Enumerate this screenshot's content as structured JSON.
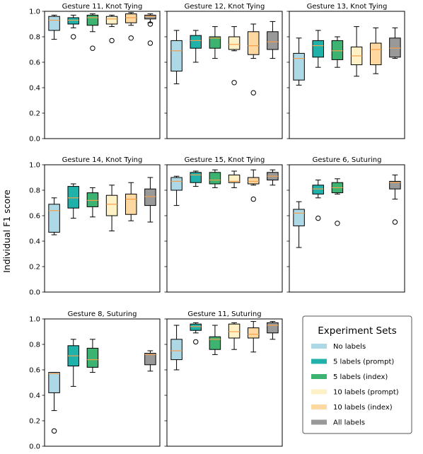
{
  "figure": {
    "ylabel": "Individual F1 score",
    "series_names": [
      "No labels",
      "5 labels (prompt)",
      "5 labels (index)",
      "10 labels (prompt)",
      "10 labels (index)",
      "All labels"
    ],
    "series_colors": [
      "#add8e6",
      "#20b2aa",
      "#3cb371",
      "#fff1c6",
      "#fdd8a0",
      "#999999"
    ],
    "median_color": "#f5a04a",
    "legend": {
      "title": "Experiment Sets",
      "placement": "bottom-right"
    }
  },
  "chart_data": [
    {
      "type": "box",
      "title": "Gesture 11, Knot Tying",
      "ylim": [
        0,
        1
      ],
      "yticks": [
        "0.0",
        "0.2",
        "0.4",
        "0.6",
        "0.8",
        "1.0"
      ],
      "show_yticks": true,
      "boxes": [
        {
          "series": 0,
          "whislo": 0.78,
          "q1": 0.85,
          "med": 0.93,
          "q3": 0.96,
          "whishi": 0.97,
          "fliers": []
        },
        {
          "series": 1,
          "whislo": 0.87,
          "q1": 0.9,
          "med": 0.93,
          "q3": 0.95,
          "whishi": 0.97,
          "fliers": [
            0.8
          ]
        },
        {
          "series": 2,
          "whislo": 0.84,
          "q1": 0.89,
          "med": 0.95,
          "q3": 0.97,
          "whishi": 0.98,
          "fliers": [
            0.71
          ]
        },
        {
          "series": 3,
          "whislo": 0.88,
          "q1": 0.9,
          "med": 0.94,
          "q3": 0.96,
          "whishi": 0.97,
          "fliers": [
            0.77
          ]
        },
        {
          "series": 4,
          "whislo": 0.89,
          "q1": 0.91,
          "med": 0.95,
          "q3": 0.98,
          "whishi": 0.99,
          "fliers": [
            0.79
          ]
        },
        {
          "series": 5,
          "whislo": 0.91,
          "q1": 0.94,
          "med": 0.96,
          "q3": 0.97,
          "whishi": 0.98,
          "fliers": [
            0.9,
            0.75
          ]
        }
      ]
    },
    {
      "type": "box",
      "title": "Gesture 12, Knot Tying",
      "ylim": [
        0,
        1
      ],
      "yticks": [
        "0.0",
        "0.2",
        "0.4",
        "0.6",
        "0.8",
        "1.0"
      ],
      "show_yticks": false,
      "boxes": [
        {
          "series": 0,
          "whislo": 0.43,
          "q1": 0.53,
          "med": 0.69,
          "q3": 0.77,
          "whishi": 0.85,
          "fliers": []
        },
        {
          "series": 1,
          "whislo": 0.6,
          "q1": 0.71,
          "med": 0.77,
          "q3": 0.81,
          "whishi": 0.85,
          "fliers": []
        },
        {
          "series": 2,
          "whislo": 0.63,
          "q1": 0.71,
          "med": 0.79,
          "q3": 0.8,
          "whishi": 0.88,
          "fliers": []
        },
        {
          "series": 3,
          "whislo": 0.69,
          "q1": 0.7,
          "med": 0.74,
          "q3": 0.8,
          "whishi": 0.88,
          "fliers": [
            0.44
          ]
        },
        {
          "series": 4,
          "whislo": 0.63,
          "q1": 0.66,
          "med": 0.73,
          "q3": 0.84,
          "whishi": 0.9,
          "fliers": [
            0.36
          ]
        },
        {
          "series": 5,
          "whislo": 0.63,
          "q1": 0.7,
          "med": 0.76,
          "q3": 0.84,
          "whishi": 0.92,
          "fliers": []
        }
      ]
    },
    {
      "type": "box",
      "title": "Gesture 13, Knot Tying",
      "ylim": [
        0,
        1
      ],
      "yticks": [
        "0.0",
        "0.2",
        "0.4",
        "0.6",
        "0.8",
        "1.0"
      ],
      "show_yticks": false,
      "boxes": [
        {
          "series": 0,
          "whislo": 0.42,
          "q1": 0.46,
          "med": 0.63,
          "q3": 0.67,
          "whishi": 0.79,
          "fliers": []
        },
        {
          "series": 1,
          "whislo": 0.56,
          "q1": 0.64,
          "med": 0.73,
          "q3": 0.77,
          "whishi": 0.85,
          "fliers": []
        },
        {
          "series": 2,
          "whislo": 0.56,
          "q1": 0.62,
          "med": 0.69,
          "q3": 0.77,
          "whishi": 0.8,
          "fliers": []
        },
        {
          "series": 3,
          "whislo": 0.49,
          "q1": 0.58,
          "med": 0.65,
          "q3": 0.72,
          "whishi": 0.88,
          "fliers": []
        },
        {
          "series": 4,
          "whislo": 0.51,
          "q1": 0.58,
          "med": 0.7,
          "q3": 0.75,
          "whishi": 0.87,
          "fliers": []
        },
        {
          "series": 5,
          "whislo": 0.63,
          "q1": 0.64,
          "med": 0.71,
          "q3": 0.79,
          "whishi": 0.87,
          "fliers": []
        }
      ]
    },
    {
      "type": "box",
      "title": "Gesture 14, Knot Tying",
      "ylim": [
        0,
        1
      ],
      "yticks": [
        "0.0",
        "0.2",
        "0.4",
        "0.6",
        "0.8",
        "1.0"
      ],
      "show_yticks": true,
      "boxes": [
        {
          "series": 0,
          "whislo": 0.45,
          "q1": 0.47,
          "med": 0.64,
          "q3": 0.69,
          "whishi": 0.74,
          "fliers": []
        },
        {
          "series": 1,
          "whislo": 0.58,
          "q1": 0.66,
          "med": 0.74,
          "q3": 0.83,
          "whishi": 0.85,
          "fliers": []
        },
        {
          "series": 2,
          "whislo": 0.59,
          "q1": 0.67,
          "med": 0.72,
          "q3": 0.78,
          "whishi": 0.82,
          "fliers": []
        },
        {
          "series": 3,
          "whislo": 0.48,
          "q1": 0.6,
          "med": 0.69,
          "q3": 0.76,
          "whishi": 0.84,
          "fliers": []
        },
        {
          "series": 4,
          "whislo": 0.56,
          "q1": 0.61,
          "med": 0.73,
          "q3": 0.77,
          "whishi": 0.86,
          "fliers": []
        },
        {
          "series": 5,
          "whislo": 0.55,
          "q1": 0.68,
          "med": 0.75,
          "q3": 0.81,
          "whishi": 0.9,
          "fliers": []
        }
      ]
    },
    {
      "type": "box",
      "title": "Gesture 15, Knot Tying",
      "ylim": [
        0,
        1
      ],
      "yticks": [
        "0.0",
        "0.2",
        "0.4",
        "0.6",
        "0.8",
        "1.0"
      ],
      "show_yticks": false,
      "boxes": [
        {
          "series": 0,
          "whislo": 0.68,
          "q1": 0.8,
          "med": 0.87,
          "q3": 0.9,
          "whishi": 0.91,
          "fliers": []
        },
        {
          "series": 1,
          "whislo": 0.83,
          "q1": 0.86,
          "med": 0.92,
          "q3": 0.94,
          "whishi": 0.95,
          "fliers": []
        },
        {
          "series": 2,
          "whislo": 0.82,
          "q1": 0.85,
          "med": 0.88,
          "q3": 0.94,
          "whishi": 0.96,
          "fliers": []
        },
        {
          "series": 3,
          "whislo": 0.82,
          "q1": 0.86,
          "med": 0.87,
          "q3": 0.92,
          "whishi": 0.95,
          "fliers": []
        },
        {
          "series": 4,
          "whislo": 0.84,
          "q1": 0.85,
          "med": 0.87,
          "q3": 0.9,
          "whishi": 0.96,
          "fliers": [
            0.73
          ]
        },
        {
          "series": 5,
          "whislo": 0.84,
          "q1": 0.88,
          "med": 0.91,
          "q3": 0.94,
          "whishi": 0.96,
          "fliers": []
        }
      ]
    },
    {
      "type": "box",
      "title": "Gesture 6, Suturing",
      "ylim": [
        0,
        1
      ],
      "yticks": [
        "0.0",
        "0.2",
        "0.4",
        "0.6",
        "0.8",
        "1.0"
      ],
      "show_yticks": false,
      "boxes": [
        {
          "series": 0,
          "whislo": 0.35,
          "q1": 0.52,
          "med": 0.62,
          "q3": 0.65,
          "whishi": 0.71,
          "fliers": []
        },
        {
          "series": 1,
          "whislo": 0.74,
          "q1": 0.77,
          "med": 0.81,
          "q3": 0.84,
          "whishi": 0.88,
          "fliers": [
            0.58
          ]
        },
        {
          "series": 2,
          "whislo": 0.77,
          "q1": 0.78,
          "med": 0.82,
          "q3": 0.86,
          "whishi": 0.89,
          "fliers": [
            0.54
          ]
        },
        {
          "series": 5,
          "whislo": 0.73,
          "q1": 0.81,
          "med": 0.86,
          "q3": 0.87,
          "whishi": 0.92,
          "fliers": [
            0.55
          ]
        }
      ]
    },
    {
      "type": "box",
      "title": "Gesture 8, Suturing",
      "ylim": [
        0,
        1
      ],
      "yticks": [
        "0.0",
        "0.2",
        "0.4",
        "0.6",
        "0.8",
        "1.0"
      ],
      "show_yticks": true,
      "boxes": [
        {
          "series": 0,
          "whislo": 0.28,
          "q1": 0.42,
          "med": 0.57,
          "q3": 0.58,
          "whishi": 0.58,
          "fliers": [
            0.12
          ]
        },
        {
          "series": 1,
          "whislo": 0.47,
          "q1": 0.63,
          "med": 0.71,
          "q3": 0.79,
          "whishi": 0.84,
          "fliers": []
        },
        {
          "series": 2,
          "whislo": 0.58,
          "q1": 0.62,
          "med": 0.68,
          "q3": 0.77,
          "whishi": 0.84,
          "fliers": []
        },
        {
          "series": 5,
          "whislo": 0.59,
          "q1": 0.64,
          "med": 0.72,
          "q3": 0.73,
          "whishi": 0.75,
          "fliers": []
        }
      ]
    },
    {
      "type": "box",
      "title": "Gesture 11, Suturing",
      "ylim": [
        0,
        1
      ],
      "yticks": [
        "0.0",
        "0.2",
        "0.4",
        "0.6",
        "0.8",
        "1.0"
      ],
      "show_yticks": false,
      "boxes": [
        {
          "series": 0,
          "whislo": 0.6,
          "q1": 0.68,
          "med": 0.75,
          "q3": 0.84,
          "whishi": 0.95,
          "fliers": []
        },
        {
          "series": 1,
          "whislo": 0.89,
          "q1": 0.91,
          "med": 0.94,
          "q3": 0.96,
          "whishi": 0.97,
          "fliers": [
            0.82
          ]
        },
        {
          "series": 2,
          "whislo": 0.72,
          "q1": 0.76,
          "med": 0.84,
          "q3": 0.86,
          "whishi": 0.95,
          "fliers": []
        },
        {
          "series": 3,
          "whislo": 0.76,
          "q1": 0.85,
          "med": 0.9,
          "q3": 0.96,
          "whishi": 0.97,
          "fliers": []
        },
        {
          "series": 4,
          "whislo": 0.74,
          "q1": 0.85,
          "med": 0.88,
          "q3": 0.93,
          "whishi": 0.98,
          "fliers": []
        },
        {
          "series": 5,
          "whislo": 0.84,
          "q1": 0.89,
          "med": 0.95,
          "q3": 0.97,
          "whishi": 0.98,
          "fliers": []
        }
      ]
    }
  ]
}
